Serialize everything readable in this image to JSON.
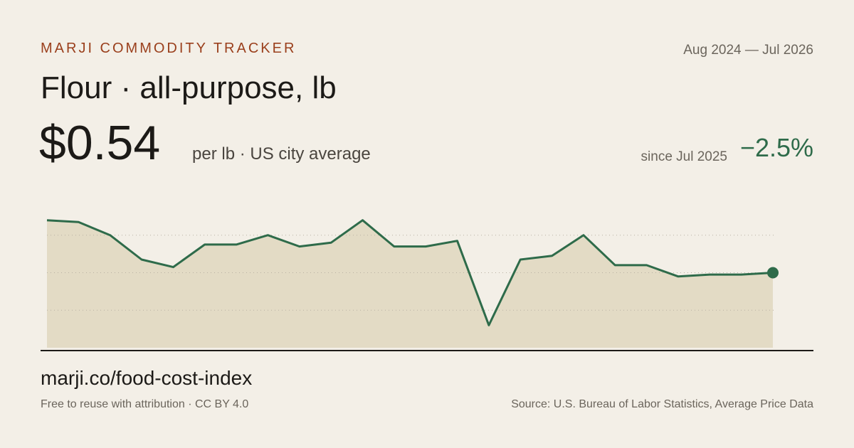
{
  "brand": "MARJI COMMODITY TRACKER",
  "date_range": "Aug 2024 — Jul 2026",
  "title": "Flour · all-purpose, lb",
  "price": "$0.54",
  "price_note": "per lb · US city average",
  "change_period": "since Jul 2025",
  "change": "−2.5%",
  "url": "marji.co/food-cost-index",
  "license": "Free to reuse with attribution · CC BY 4.0",
  "source": "Source: U.S. Bureau of Labor Statistics, Average Price Data",
  "chart_data": {
    "type": "area",
    "values": [
      0.568,
      0.567,
      0.56,
      0.547,
      0.543,
      0.555,
      0.555,
      0.56,
      0.554,
      0.556,
      0.568,
      0.554,
      0.554,
      0.557,
      0.512,
      0.547,
      0.549,
      0.56,
      0.544,
      0.544,
      0.538,
      0.539,
      0.539,
      0.54
    ],
    "color": "#2e6b4a",
    "fill": "#e3dbc5",
    "ylim": [
      0.5,
      0.58
    ],
    "yticks": [
      0.52,
      0.54,
      0.56
    ],
    "grid": true
  }
}
